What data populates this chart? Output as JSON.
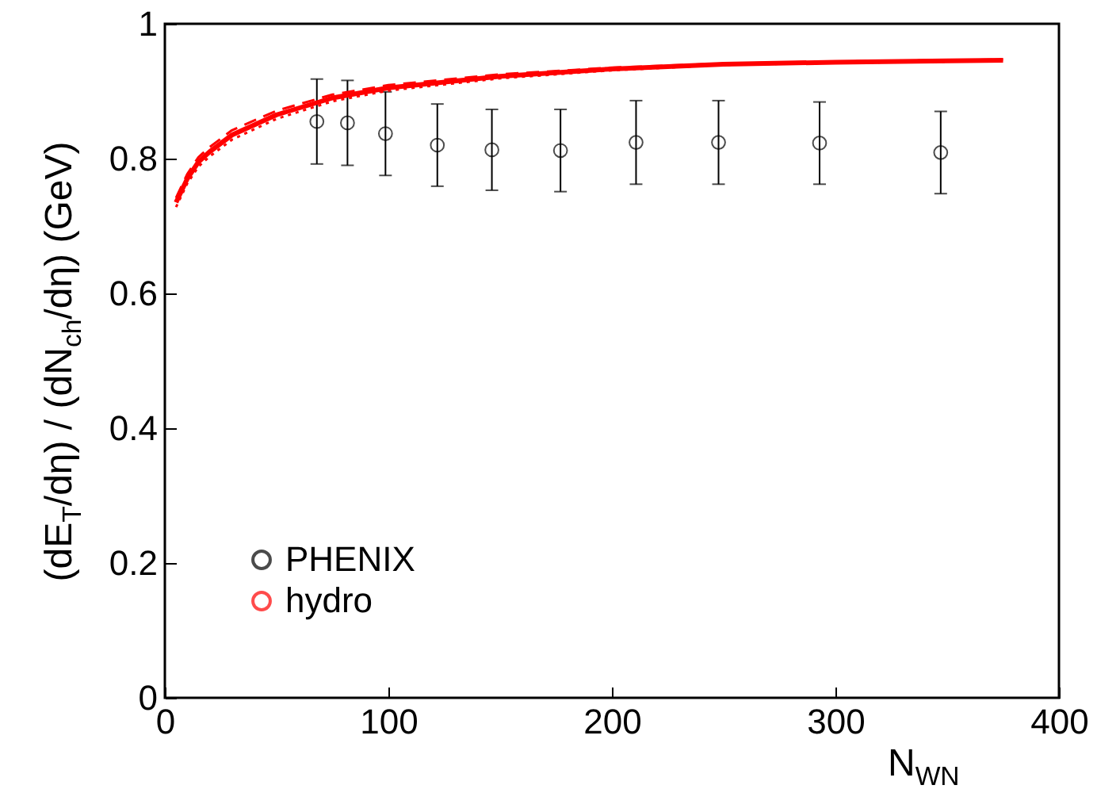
{
  "chart_data": {
    "type": "scatter",
    "xlabel": "N$_{WN}$",
    "ylabel": "(dE$_{T}$/dη) / (dN$_{ch}$/dη) (GeV)",
    "series": [
      {
        "name": "PHENIX",
        "color": "#000000",
        "marker": "circle",
        "x": [
          68,
          81.7,
          98.7,
          121.9,
          146.3,
          177,
          210.8,
          247.7,
          292.9,
          347.1
        ],
        "values": [
          0.855,
          0.853,
          0.837,
          0.82,
          0.813,
          0.812,
          0.824,
          0.824,
          0.823,
          0.809
        ],
        "errors": [
          0.063,
          0.063,
          0.062,
          0.061,
          0.06,
          0.061,
          0.062,
          0.062,
          0.061,
          0.061
        ]
      },
      {
        "name": "hydro",
        "type": "line",
        "color": "#ff0000",
        "line_style": "solid",
        "x": [
          5,
          10,
          15,
          20,
          30,
          50,
          75,
          100,
          150,
          200,
          250,
          300,
          350,
          375
        ],
        "values": [
          0.735,
          0.77,
          0.795,
          0.81,
          0.835,
          0.865,
          0.89,
          0.905,
          0.922,
          0.933,
          0.94,
          0.943,
          0.945,
          0.946
        ]
      },
      {
        "type": "line",
        "color": "#ff0000",
        "line_style": "dashed",
        "x": [
          5,
          10,
          15,
          20,
          30,
          50,
          75,
          100,
          150,
          200,
          250,
          300,
          350,
          375
        ],
        "values": [
          0.742,
          0.777,
          0.802,
          0.817,
          0.842,
          0.871,
          0.895,
          0.909,
          0.925,
          0.935,
          0.941,
          0.944,
          0.946,
          0.947
        ]
      },
      {
        "type": "line",
        "color": "#ff0000",
        "line_style": "dotted",
        "x": [
          5,
          10,
          15,
          20,
          30,
          50,
          75,
          100,
          150,
          200,
          250,
          300,
          350,
          375
        ],
        "values": [
          0.728,
          0.763,
          0.788,
          0.803,
          0.828,
          0.859,
          0.885,
          0.901,
          0.919,
          0.931,
          0.939,
          0.942,
          0.944,
          0.945
        ]
      }
    ],
    "xlim": [
      0,
      400
    ],
    "xticks": [
      0,
      100,
      200,
      300,
      400
    ],
    "ylim": [
      0,
      1
    ],
    "yticks": [
      {
        "value": 0,
        "label": "0"
      },
      0.2,
      0.4,
      0.6,
      0.8,
      {
        "value": 1,
        "label": "1"
      }
    ],
    "grid": false,
    "legend": "bottom left"
  }
}
